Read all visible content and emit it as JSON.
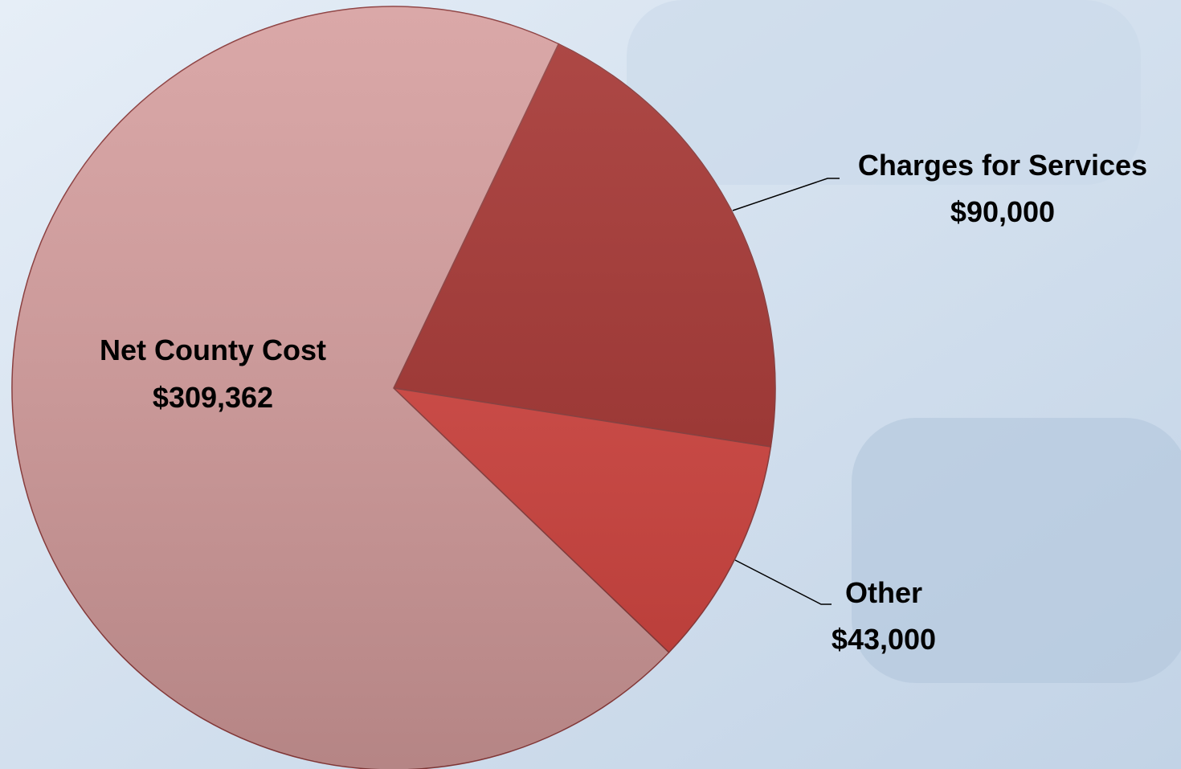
{
  "chart_data": {
    "type": "pie",
    "categories": [
      "Charges for Services",
      "Other",
      "Net County Cost"
    ],
    "values": [
      90000,
      43000,
      309362
    ],
    "value_labels": [
      "$90,000",
      "$43,000",
      "$309,362"
    ],
    "colors": [
      "#a3302d",
      "#d4433e",
      "#d59c9c"
    ]
  }
}
